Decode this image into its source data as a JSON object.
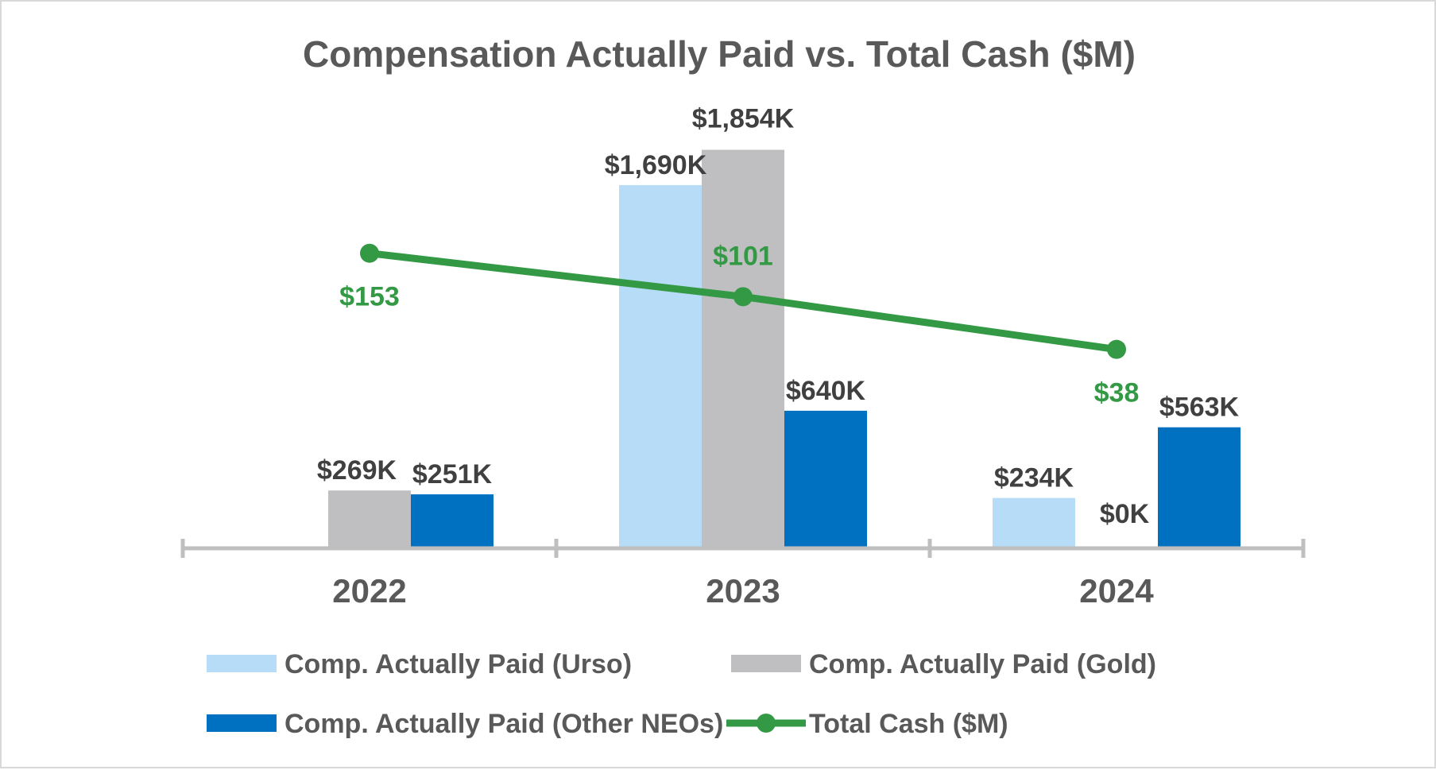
{
  "chart_data": {
    "type": "bar",
    "title": "Compensation Actually Paid vs. Total Cash ($M)",
    "categories": [
      "2022",
      "2023",
      "2024"
    ],
    "xlabel": "",
    "ylabel": "",
    "ylim": [
      0,
      2100
    ],
    "grid": false,
    "legend_position": "bottom",
    "series": [
      {
        "name": "Comp. Actually Paid (Urso)",
        "kind": "bar",
        "color": "#b7dcf7",
        "values": [
          null,
          1690,
          234
        ],
        "labels": [
          "",
          "$1,690K",
          "$234K"
        ]
      },
      {
        "name": "Comp. Actually Paid (Gold)",
        "kind": "bar",
        "color": "#bfbfc1",
        "values": [
          269,
          1854,
          0
        ],
        "labels": [
          "$269K",
          "$1,854K",
          "$0K"
        ]
      },
      {
        "name": "Comp. Actually Paid (Other NEOs)",
        "kind": "bar",
        "color": "#0070c0",
        "values": [
          251,
          640,
          563
        ],
        "labels": [
          "$251K",
          "$640K",
          "$563K"
        ]
      },
      {
        "name": "Total Cash ($M)",
        "kind": "line",
        "color": "#339944",
        "values": [
          153,
          101,
          38
        ],
        "labels": [
          "$153",
          "$101",
          "$38"
        ],
        "ylim": [
          -200,
          340
        ]
      }
    ]
  }
}
